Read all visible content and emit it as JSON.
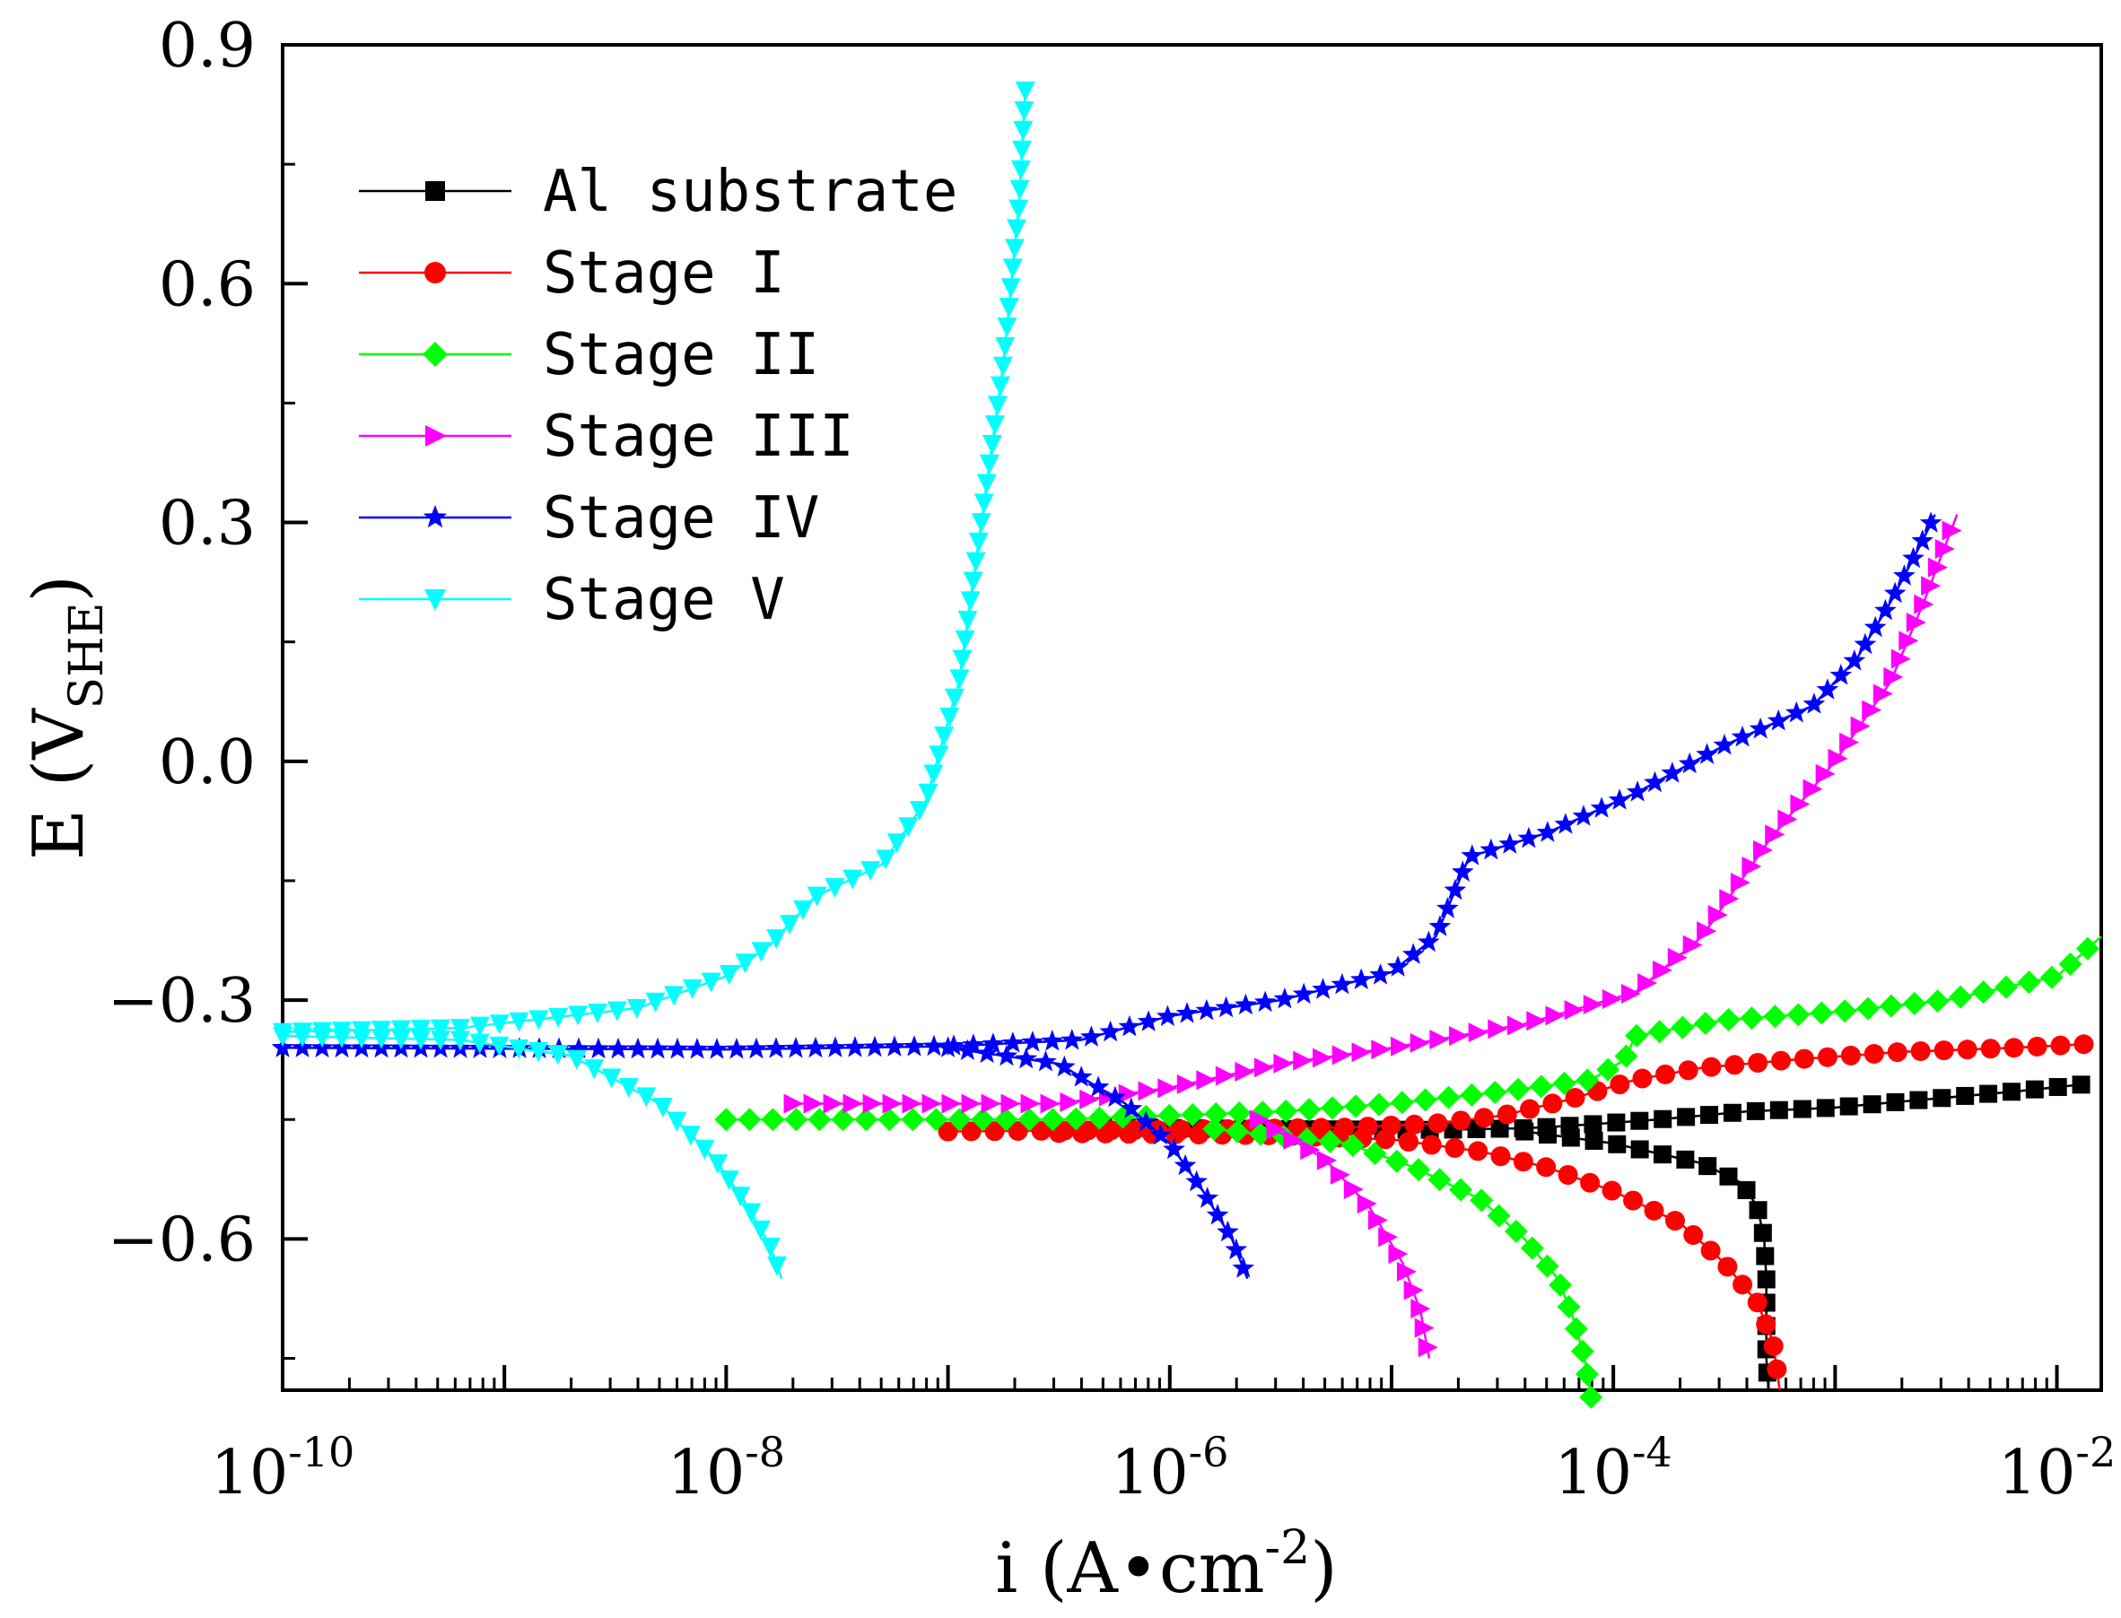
{
  "chart_data": {
    "type": "line",
    "title": "",
    "x_scale": "log",
    "xlim_exp": [
      -10,
      -1.8
    ],
    "ylim": [
      -0.79,
      0.9
    ],
    "x_major_ticks": [
      {
        "exp": -10,
        "base": "10",
        "power": "-10"
      },
      {
        "exp": -8,
        "base": "10",
        "power": "-8"
      },
      {
        "exp": -6,
        "base": "10",
        "power": "-6"
      },
      {
        "exp": -4,
        "base": "10",
        "power": "-4"
      },
      {
        "exp": -2,
        "base": "10",
        "power": "-2"
      }
    ],
    "y_ticks": [
      {
        "value": 0.9,
        "label": "0.9"
      },
      {
        "value": 0.6,
        "label": "0.6"
      },
      {
        "value": 0.3,
        "label": "0.3"
      },
      {
        "value": 0.0,
        "label": "0.0"
      },
      {
        "value": -0.3,
        "label": "−0.3"
      },
      {
        "value": -0.6,
        "label": "−0.6"
      }
    ],
    "xlabel": {
      "prefix": "i (A•cm",
      "power": "-2",
      "suffix": ")"
    },
    "ylabel": {
      "prefix": "E (V",
      "sub": "SHE",
      "suffix": ")"
    },
    "legend_position": "top-left",
    "series": [
      {
        "name": "Al substrate",
        "color": "#000000",
        "marker": "square",
        "anodic": [
          [
            -6.3,
            -0.46
          ],
          [
            -5.5,
            -0.462
          ],
          [
            -4.8,
            -0.463
          ],
          [
            -4.4,
            -0.461
          ],
          [
            -4.2,
            -0.458
          ],
          [
            -3.8,
            -0.45
          ],
          [
            -3.4,
            -0.44
          ],
          [
            -3.0,
            -0.435
          ],
          [
            -2.6,
            -0.425
          ],
          [
            -2.2,
            -0.415
          ],
          [
            -1.85,
            -0.405
          ]
        ],
        "cathodic": [
          [
            -4.4,
            -0.465
          ],
          [
            -4.0,
            -0.48
          ],
          [
            -3.6,
            -0.505
          ],
          [
            -3.42,
            -0.53
          ],
          [
            -3.35,
            -0.56
          ],
          [
            -3.32,
            -0.6
          ],
          [
            -3.31,
            -0.65
          ],
          [
            -3.31,
            -0.7
          ],
          [
            -3.31,
            -0.75
          ],
          [
            -3.3,
            -0.79
          ]
        ]
      },
      {
        "name": "Stage I",
        "color": "#ff0000",
        "marker": "circle",
        "anodic": [
          [
            -7.0,
            -0.465
          ],
          [
            -6.0,
            -0.463
          ],
          [
            -5.2,
            -0.46
          ],
          [
            -4.8,
            -0.455
          ],
          [
            -4.5,
            -0.445
          ],
          [
            -4.2,
            -0.425
          ],
          [
            -3.9,
            -0.4
          ],
          [
            -3.6,
            -0.385
          ],
          [
            -3.2,
            -0.375
          ],
          [
            -2.7,
            -0.365
          ],
          [
            -2.2,
            -0.36
          ],
          [
            -1.85,
            -0.355
          ]
        ],
        "cathodic": [
          [
            -6.5,
            -0.467
          ],
          [
            -5.5,
            -0.47
          ],
          [
            -5.0,
            -0.475
          ],
          [
            -4.6,
            -0.49
          ],
          [
            -4.3,
            -0.51
          ],
          [
            -4.0,
            -0.54
          ],
          [
            -3.7,
            -0.58
          ],
          [
            -3.5,
            -0.63
          ],
          [
            -3.35,
            -0.68
          ],
          [
            -3.28,
            -0.73
          ],
          [
            -3.25,
            -0.79
          ]
        ]
      },
      {
        "name": "Stage II",
        "color": "#00ff00",
        "marker": "diamond",
        "anodic": [
          [
            -8.0,
            -0.45
          ],
          [
            -6.5,
            -0.45
          ],
          [
            -5.5,
            -0.44
          ],
          [
            -5.0,
            -0.43
          ],
          [
            -4.5,
            -0.415
          ],
          [
            -4.1,
            -0.4
          ],
          [
            -3.95,
            -0.375
          ],
          [
            -3.9,
            -0.345
          ],
          [
            -3.5,
            -0.325
          ],
          [
            -3.0,
            -0.315
          ],
          [
            -2.5,
            -0.3
          ],
          [
            -2.0,
            -0.27
          ],
          [
            -1.8,
            -0.22
          ]
        ],
        "cathodic": [
          [
            -5.8,
            -0.462
          ],
          [
            -5.2,
            -0.48
          ],
          [
            -4.9,
            -0.51
          ],
          [
            -4.6,
            -0.55
          ],
          [
            -4.4,
            -0.6
          ],
          [
            -4.25,
            -0.65
          ],
          [
            -4.18,
            -0.7
          ],
          [
            -4.13,
            -0.75
          ],
          [
            -4.1,
            -0.8
          ]
        ]
      },
      {
        "name": "Stage III",
        "color": "#ff00ff",
        "marker": "triangle-right",
        "anodic": [
          [
            -7.7,
            -0.43
          ],
          [
            -6.5,
            -0.43
          ],
          [
            -6.0,
            -0.41
          ],
          [
            -5.5,
            -0.38
          ],
          [
            -5.0,
            -0.36
          ],
          [
            -4.4,
            -0.33
          ],
          [
            -3.9,
            -0.29
          ],
          [
            -3.6,
            -0.22
          ],
          [
            -3.3,
            -0.1
          ],
          [
            -3.0,
            0.0
          ],
          [
            -2.75,
            0.1
          ],
          [
            -2.6,
            0.2
          ],
          [
            -2.45,
            0.31
          ]
        ],
        "cathodic": [
          [
            -5.6,
            -0.45
          ],
          [
            -5.3,
            -0.5
          ],
          [
            -5.1,
            -0.56
          ],
          [
            -4.95,
            -0.63
          ],
          [
            -4.87,
            -0.69
          ],
          [
            -4.83,
            -0.75
          ]
        ]
      },
      {
        "name": "Stage IV",
        "color": "#0000ff",
        "marker": "star",
        "anodic": [
          [
            -10.0,
            -0.36
          ],
          [
            -8.0,
            -0.362
          ],
          [
            -7.0,
            -0.358
          ],
          [
            -6.4,
            -0.35
          ],
          [
            -6.0,
            -0.32
          ],
          [
            -5.5,
            -0.3
          ],
          [
            -5.0,
            -0.265
          ],
          [
            -4.8,
            -0.22
          ],
          [
            -4.65,
            -0.12
          ],
          [
            -4.3,
            -0.09
          ],
          [
            -3.9,
            -0.04
          ],
          [
            -3.5,
            0.02
          ],
          [
            -3.1,
            0.07
          ],
          [
            -2.9,
            0.13
          ],
          [
            -2.75,
            0.2
          ],
          [
            -2.6,
            0.28
          ],
          [
            -2.55,
            0.31
          ]
        ],
        "cathodic": [
          [
            -7.0,
            -0.36
          ],
          [
            -6.5,
            -0.38
          ],
          [
            -6.2,
            -0.43
          ],
          [
            -6.0,
            -0.48
          ],
          [
            -5.85,
            -0.54
          ],
          [
            -5.72,
            -0.6
          ],
          [
            -5.65,
            -0.65
          ]
        ]
      },
      {
        "name": "Stage V",
        "color": "#00ffff",
        "marker": "triangle-down",
        "anodic": [
          [
            -10.0,
            -0.34
          ],
          [
            -9.2,
            -0.335
          ],
          [
            -8.4,
            -0.31
          ],
          [
            -8.0,
            -0.27
          ],
          [
            -7.8,
            -0.23
          ],
          [
            -7.6,
            -0.17
          ],
          [
            -7.3,
            -0.13
          ],
          [
            -7.1,
            -0.05
          ],
          [
            -6.95,
            0.1
          ],
          [
            -6.85,
            0.3
          ],
          [
            -6.75,
            0.5
          ],
          [
            -6.68,
            0.7
          ],
          [
            -6.65,
            0.85
          ]
        ],
        "cathodic": [
          [
            -10.0,
            -0.345
          ],
          [
            -9.2,
            -0.35
          ],
          [
            -8.7,
            -0.37
          ],
          [
            -8.3,
            -0.43
          ],
          [
            -8.05,
            -0.5
          ],
          [
            -7.9,
            -0.56
          ],
          [
            -7.8,
            -0.61
          ],
          [
            -7.75,
            -0.65
          ]
        ]
      }
    ]
  }
}
